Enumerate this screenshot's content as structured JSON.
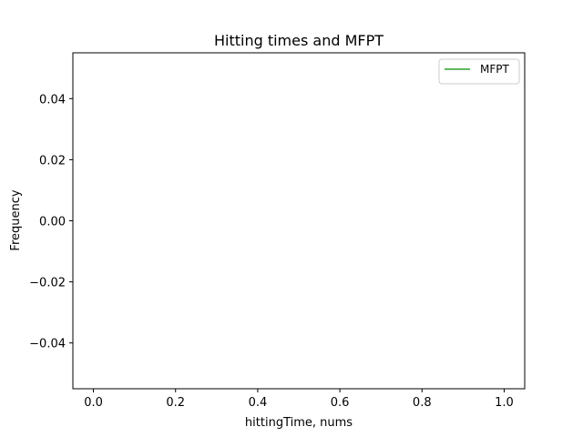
{
  "chart_data": {
    "type": "line",
    "title": "Hitting times and MFPT",
    "xlabel": "hittingTime, nums",
    "ylabel": "Frequency",
    "xlim": [
      -0.05,
      1.05
    ],
    "ylim": [
      -0.055,
      0.055
    ],
    "x_ticks": [
      0.0,
      0.2,
      0.4,
      0.6,
      0.8,
      1.0
    ],
    "x_tick_labels": [
      "0.0",
      "0.2",
      "0.4",
      "0.6",
      "0.8",
      "1.0"
    ],
    "y_ticks": [
      0.04,
      0.02,
      0.0,
      -0.02,
      -0.04
    ],
    "y_tick_labels": [
      "0.04",
      "0.02",
      "0.00",
      "−0.02",
      "−0.04"
    ],
    "grid": false,
    "legend_position": "top-right",
    "series": [
      {
        "name": "MFPT",
        "color": "#2ca02c",
        "x": [],
        "y": []
      }
    ]
  }
}
